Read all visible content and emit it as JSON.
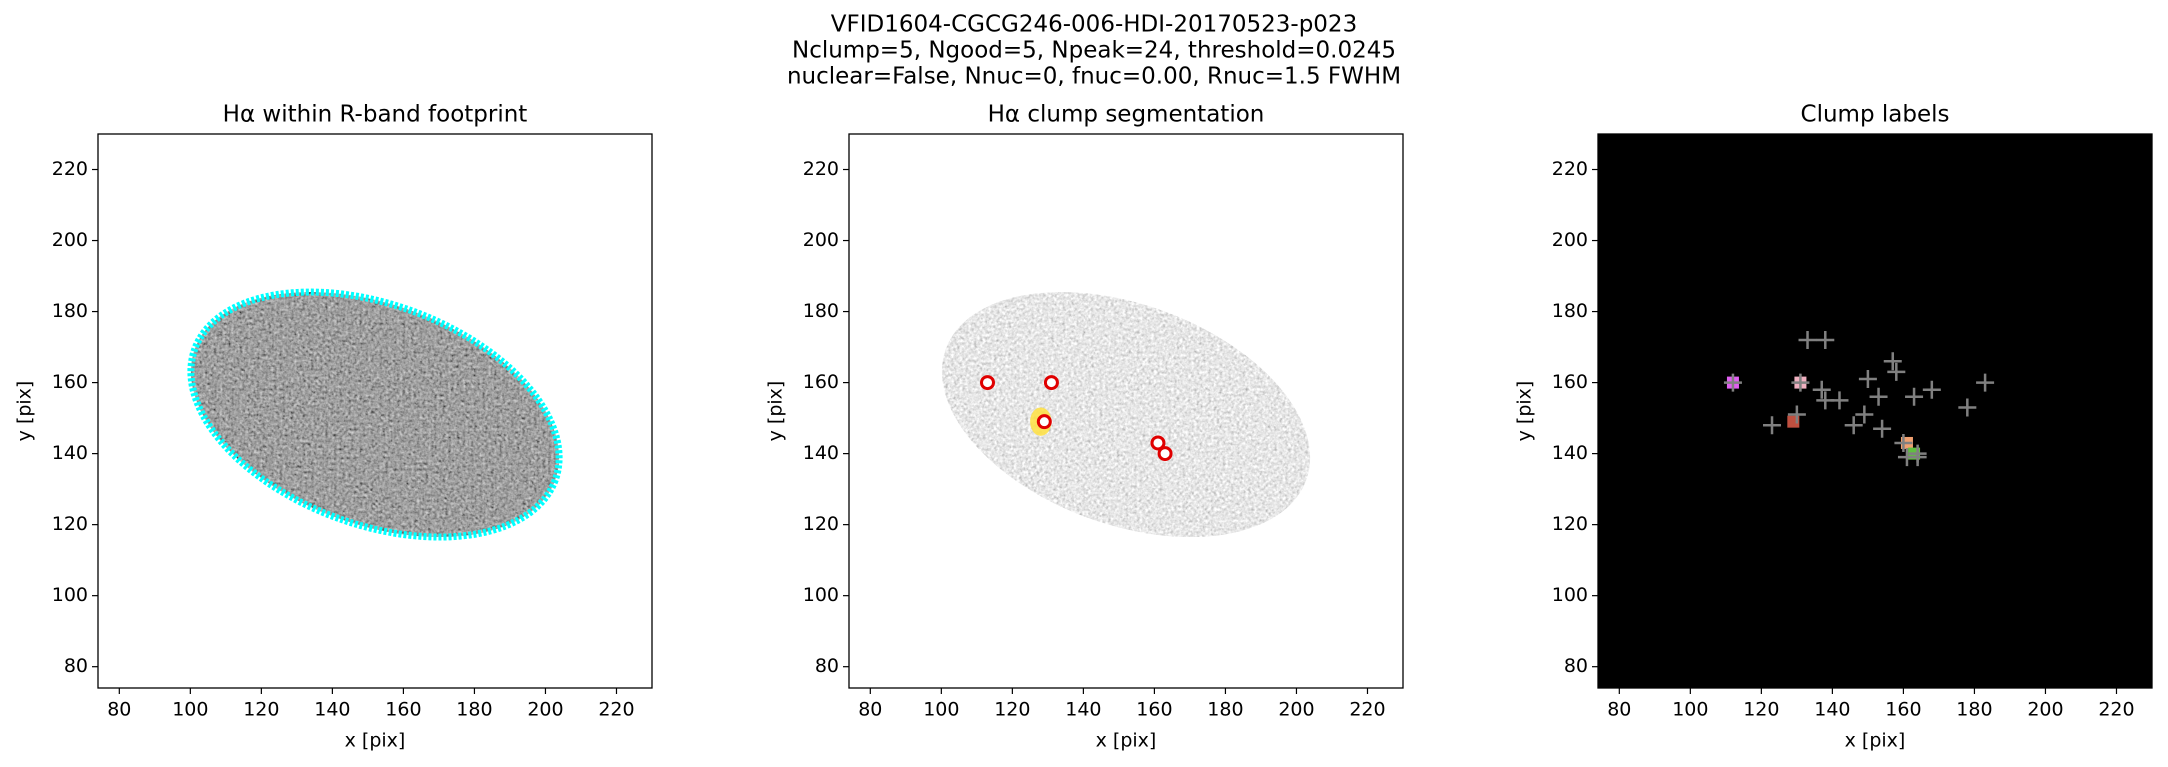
{
  "title_lines": [
    "VFID1604-CGCG246-006-HDI-20170523-p023",
    "Nclump=5, Ngood=5, Npeak=24, threshold=0.0245",
    "nuclear=False, Nnuc=0, fnuc=0.00, Rnuc=1.5 FWHM"
  ],
  "chart_data": [
    {
      "type": "image",
      "style": "footprint",
      "title": "Hα within R-band footprint",
      "xlabel": "x [pix]",
      "ylabel": "y [pix]",
      "xlim": [
        74,
        230
      ],
      "ylim": [
        74,
        230
      ],
      "xticks": [
        80,
        100,
        120,
        140,
        160,
        180,
        200,
        220
      ],
      "yticks": [
        80,
        100,
        120,
        140,
        160,
        180,
        200,
        220
      ],
      "background": "#ffffff",
      "contour_color": "#00ffff"
    },
    {
      "type": "image",
      "style": "segmentation",
      "title": "Hα clump segmentation",
      "xlabel": "x [pix]",
      "ylabel": "y [pix]",
      "xlim": [
        74,
        230
      ],
      "ylim": [
        74,
        230
      ],
      "xticks": [
        80,
        100,
        120,
        140,
        160,
        180,
        200,
        220
      ],
      "yticks": [
        80,
        100,
        120,
        140,
        160,
        180,
        200,
        220
      ],
      "background": "#ffffff",
      "clumps": {
        "x": [
          113,
          131,
          129,
          161,
          163
        ],
        "y": [
          160,
          160,
          149,
          143,
          140
        ],
        "color": "#e00000"
      }
    },
    {
      "type": "image",
      "style": "labels",
      "title": "Clump labels",
      "xlabel": "x [pix]",
      "ylabel": "y [pix]",
      "xlim": [
        74,
        230
      ],
      "ylim": [
        74,
        230
      ],
      "xticks": [
        80,
        100,
        120,
        140,
        160,
        180,
        200,
        220
      ],
      "yticks": [
        80,
        100,
        120,
        140,
        160,
        180,
        200,
        220
      ],
      "background": "#000000",
      "regions": {
        "x": [
          112,
          131,
          129,
          161,
          163
        ],
        "y": [
          160,
          160,
          149,
          143,
          140
        ],
        "colors": [
          "#e060f0",
          "#f0b0c0",
          "#c05040",
          "#f0a070",
          "#60c040"
        ]
      },
      "peaks": {
        "x": [
          112,
          131,
          123,
          130,
          133,
          138,
          137,
          138,
          142,
          146,
          149,
          150,
          153,
          154,
          157,
          158,
          163,
          168,
          161,
          164,
          178,
          183,
          160,
          164
        ],
        "y": [
          160,
          160,
          148,
          151,
          172,
          172,
          158,
          155,
          155,
          148,
          151,
          161,
          156,
          147,
          166,
          163,
          156,
          158,
          139,
          139,
          153,
          160,
          143,
          140
        ],
        "color": "#808080"
      }
    }
  ]
}
